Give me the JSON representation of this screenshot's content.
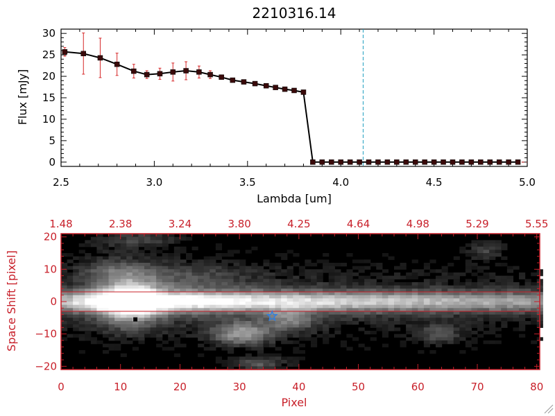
{
  "chart_data": [
    {
      "type": "line",
      "title": "2210316.14",
      "xlabel": "Lambda [um]",
      "ylabel": "Flux [mJy]",
      "xlim": [
        2.5,
        5.0
      ],
      "ylim": [
        -1,
        31
      ],
      "xticks": [
        {
          "v": 2.5,
          "label": "2.5"
        },
        {
          "v": 3.0,
          "label": "3.0"
        },
        {
          "v": 3.5,
          "label": "3.5"
        },
        {
          "v": 4.0,
          "label": "4.0"
        },
        {
          "v": 4.5,
          "label": "4.5"
        },
        {
          "v": 5.0,
          "label": "5.0"
        }
      ],
      "yticks": [
        {
          "v": 0,
          "label": "0"
        },
        {
          "v": 5,
          "label": "5"
        },
        {
          "v": 10,
          "label": "10"
        },
        {
          "v": 15,
          "label": "15"
        },
        {
          "v": 20,
          "label": "20"
        },
        {
          "v": 25,
          "label": "25"
        },
        {
          "v": 30,
          "label": "30"
        }
      ],
      "vline_x": 4.12,
      "x": [
        2.52,
        2.62,
        2.71,
        2.8,
        2.89,
        2.96,
        3.03,
        3.1,
        3.17,
        3.24,
        3.3,
        3.36,
        3.42,
        3.48,
        3.54,
        3.6,
        3.65,
        3.7,
        3.75,
        3.8,
        3.85,
        3.9,
        3.95,
        4.0,
        4.05,
        4.1,
        4.15,
        4.2,
        4.25,
        4.3,
        4.35,
        4.4,
        4.45,
        4.5,
        4.55,
        4.6,
        4.65,
        4.7,
        4.75,
        4.8,
        4.85,
        4.9,
        4.95
      ],
      "y": [
        25.7,
        25.3,
        24.3,
        22.8,
        21.2,
        20.4,
        20.6,
        21.0,
        21.3,
        21.0,
        20.4,
        19.8,
        19.1,
        18.7,
        18.3,
        17.8,
        17.4,
        17.0,
        16.7,
        16.3,
        0,
        0,
        0,
        0,
        0,
        0,
        0,
        0,
        0,
        0,
        0,
        0,
        0,
        0,
        0,
        0,
        0,
        0,
        0,
        0,
        0,
        0,
        0
      ],
      "yerr": [
        1.0,
        4.8,
        4.6,
        2.6,
        1.6,
        0.9,
        1.3,
        2.1,
        2.1,
        1.4,
        0.9,
        0.5,
        0.4,
        0.4,
        0.3,
        0.3,
        0.3,
        0.2,
        0.2,
        0.2,
        0,
        0,
        0,
        0,
        0,
        0,
        0,
        0,
        0,
        0,
        0,
        0,
        0,
        0,
        0,
        0,
        0,
        0,
        0,
        0,
        0,
        0,
        0
      ]
    },
    {
      "type": "heatmap",
      "xlabel": "Pixel",
      "ylabel": "Space Shift [pixel]",
      "xlim": [
        0,
        80.5
      ],
      "ylim": [
        -21,
        21
      ],
      "xticks": [
        {
          "v": 0,
          "label": "0"
        },
        {
          "v": 10,
          "label": "10"
        },
        {
          "v": 20,
          "label": "20"
        },
        {
          "v": 30,
          "label": "30"
        },
        {
          "v": 40,
          "label": "40"
        },
        {
          "v": 50,
          "label": "50"
        },
        {
          "v": 60,
          "label": "60"
        },
        {
          "v": 70,
          "label": "70"
        },
        {
          "v": 80,
          "label": "80"
        }
      ],
      "yticks": [
        {
          "v": -20,
          "label": "−20"
        },
        {
          "v": -10,
          "label": "−10"
        },
        {
          "v": 0,
          "label": "0"
        },
        {
          "v": 10,
          "label": "10"
        },
        {
          "v": 20,
          "label": "20"
        }
      ],
      "top_axis_labels": [
        "1.48",
        "2.38",
        "3.24",
        "3.80",
        "4.25",
        "4.64",
        "4.98",
        "5.29",
        "5.55"
      ],
      "aperture_lines_y": [
        3,
        -3
      ],
      "star_marker": {
        "x": 35.5,
        "y": -4.5
      },
      "dot_marker": {
        "x": 12.5,
        "y": -5.5
      },
      "trace_brightness": [
        0.6,
        0.7,
        0.78,
        0.85,
        0.92,
        0.97,
        0.98,
        0.95,
        0.9,
        0.87,
        0.88,
        0.85,
        0.83,
        0.81,
        0.79,
        0.77,
        0.75,
        0.74,
        0.73,
        0.72,
        0.7,
        0.69,
        0.68,
        0.67,
        0.65,
        0.64,
        0.63,
        0.62,
        0.61,
        0.6,
        0.58,
        0.57,
        0.56,
        0.55,
        0.54,
        0.53,
        0.52,
        0.51,
        0.5,
        0.49,
        0.48
      ],
      "blobs": [
        {
          "x": 11,
          "y": 0,
          "sx": 3.5,
          "sy": 5,
          "a": 0.75
        },
        {
          "x": 30,
          "y": -10,
          "sx": 3.5,
          "sy": 2.5,
          "a": 0.55
        },
        {
          "x": 38,
          "y": -6,
          "sx": 3,
          "sy": 2.5,
          "a": 0.35
        },
        {
          "x": 33,
          "y": -19,
          "sx": 3,
          "sy": 1.5,
          "a": 0.35
        },
        {
          "x": 63,
          "y": -10,
          "sx": 2.5,
          "sy": 2,
          "a": 0.3
        },
        {
          "x": 12,
          "y": 19,
          "sx": 5,
          "sy": 2,
          "a": 0.25
        },
        {
          "x": 71,
          "y": 16,
          "sx": 2,
          "sy": 2,
          "a": 0.25
        },
        {
          "x": 20,
          "y": 8,
          "sx": 8,
          "sy": 3,
          "a": 0.2
        },
        {
          "x": 8,
          "y": 10,
          "sx": 4,
          "sy": 3,
          "a": 0.22
        }
      ]
    }
  ],
  "colors": {
    "axis_red": "#c8202a",
    "errorbar_red": "#d62728",
    "marker": "#3a0a0a",
    "vline_cyan": "#1f9fbf",
    "star_blue": "#2f7fe0"
  }
}
